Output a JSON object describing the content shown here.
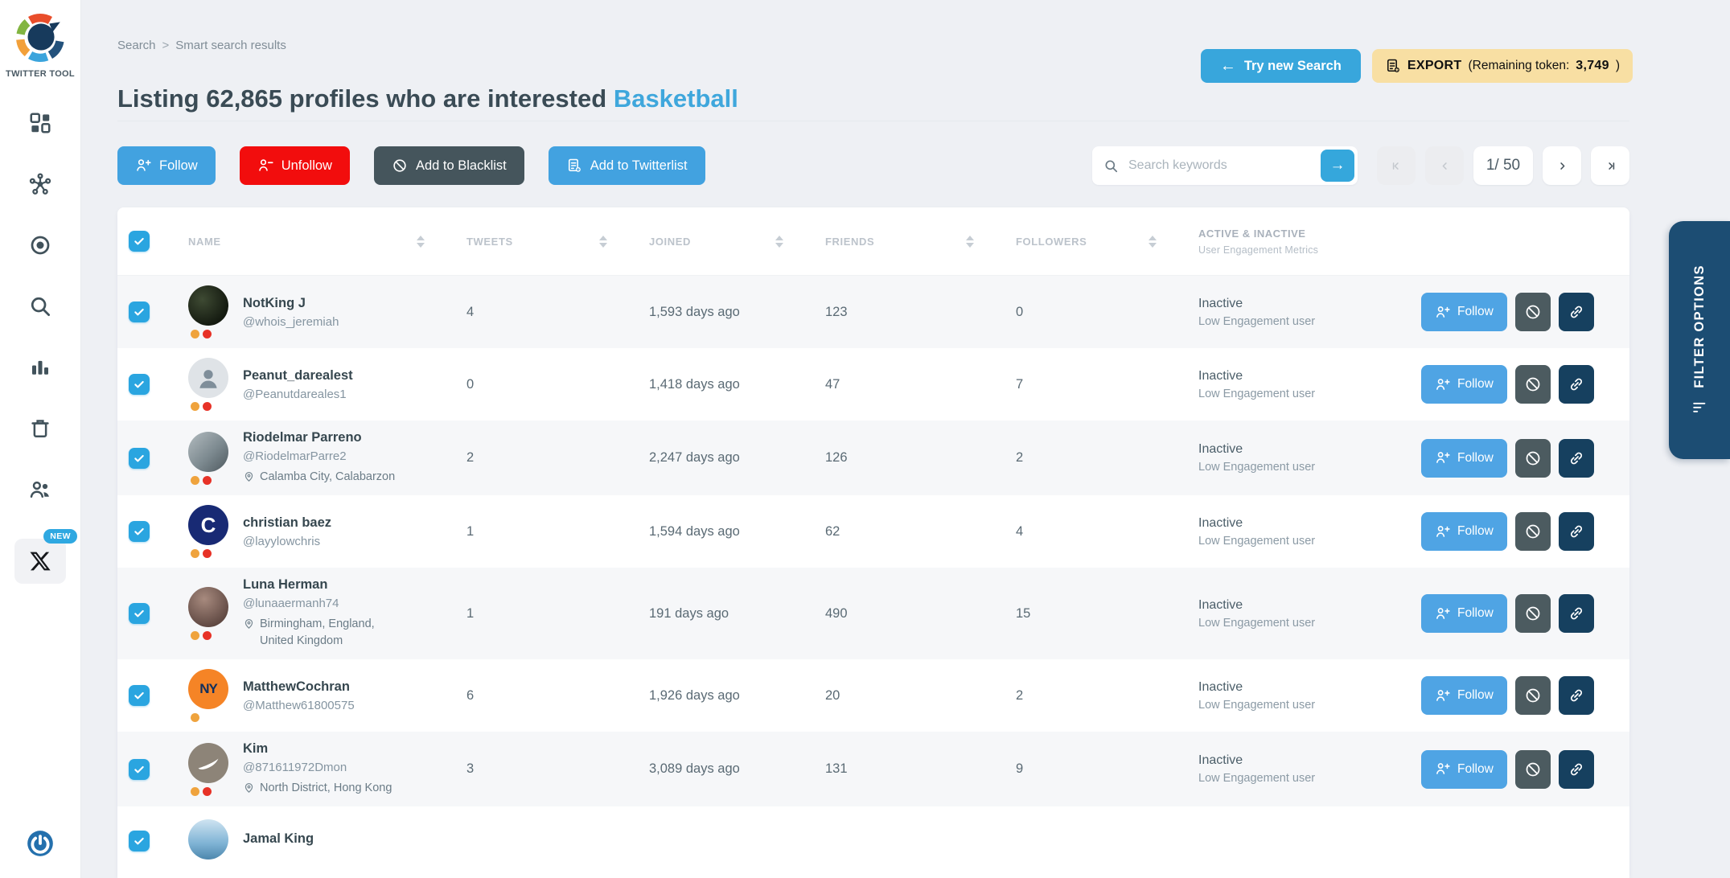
{
  "brand": {
    "name": "TWITTER TOOL"
  },
  "sidebar": {
    "new_badge": "NEW",
    "items": [
      "dashboard",
      "network",
      "target",
      "search",
      "analytics",
      "trash",
      "users",
      "x-twitter"
    ]
  },
  "breadcrumb": {
    "parent": "Search",
    "separator": ">",
    "current": "Smart search results"
  },
  "header": {
    "title_prefix": "Listing 62,865 profiles who are interested",
    "title_highlight": "Basketball"
  },
  "topbar": {
    "try_new_search": "Try new Search",
    "export": {
      "label": "EXPORT",
      "remaining_label": "(Remaining token:",
      "tokens": "3,749",
      "close": ")"
    }
  },
  "bulk_actions": {
    "follow": "Follow",
    "unfollow": "Unfollow",
    "blacklist": "Add to Blacklist",
    "twitterlist": "Add to Twitterlist"
  },
  "search": {
    "placeholder": "Search keywords"
  },
  "pagination": {
    "page_indicator": "1/ 50"
  },
  "table": {
    "columns": {
      "name": "NAME",
      "tweets": "TWEETS",
      "joined": "JOINED",
      "friends": "FRIENDS",
      "followers": "FOLLOWERS"
    },
    "engagement_column": {
      "line1": "ACTIVE & INACTIVE",
      "line2": "User Engagement Metrics"
    },
    "row_actions": {
      "follow": "Follow"
    },
    "rows": [
      {
        "name": "NotKing J",
        "handle": "@whois_jeremiah",
        "location": "",
        "tweets": "4",
        "joined": "1,593 days ago",
        "friends": "123",
        "followers": "0",
        "status": "Inactive",
        "engagement": "Low Engagement user",
        "dots": [
          "#efa33d",
          "#e73227"
        ],
        "avatar": "photo-dark",
        "checked": true
      },
      {
        "name": "Peanut_darealest",
        "handle": "@Peanutdareales1",
        "location": "",
        "tweets": "0",
        "joined": "1,418 days ago",
        "friends": "47",
        "followers": "7",
        "status": "Inactive",
        "engagement": "Low Engagement user",
        "dots": [
          "#efa33d",
          "#e73227"
        ],
        "avatar": "default",
        "checked": true
      },
      {
        "name": "Riodelmar Parreno",
        "handle": "@RiodelmarParre2",
        "location": "Calamba City, Calabarzon",
        "tweets": "2",
        "joined": "2,247 days ago",
        "friends": "126",
        "followers": "2",
        "status": "Inactive",
        "engagement": "Low Engagement user",
        "dots": [
          "#efa33d",
          "#e73227"
        ],
        "avatar": "photo-gray",
        "checked": true
      },
      {
        "name": "christian baez",
        "handle": "@layylowchris",
        "location": "",
        "tweets": "1",
        "joined": "1,594 days ago",
        "friends": "62",
        "followers": "4",
        "status": "Inactive",
        "engagement": "Low Engagement user",
        "dots": [
          "#efa33d",
          "#e73227"
        ],
        "avatar": "champion",
        "checked": true
      },
      {
        "name": "Luna Herman",
        "handle": "@lunaaermanh74",
        "location": "Birmingham, England, United Kingdom",
        "tweets": "1",
        "joined": "191 days ago",
        "friends": "490",
        "followers": "15",
        "status": "Inactive",
        "engagement": "Low Engagement user",
        "dots": [
          "#efa33d",
          "#e73227"
        ],
        "avatar": "photo-warm",
        "checked": true
      },
      {
        "name": "MatthewCochran",
        "handle": "@Matthew61800575",
        "location": "",
        "tweets": "6",
        "joined": "1,926 days ago",
        "friends": "20",
        "followers": "2",
        "status": "Inactive",
        "engagement": "Low Engagement user",
        "dots": [
          "#efa33d"
        ],
        "avatar": "knicks",
        "checked": true
      },
      {
        "name": "Kim",
        "handle": "@871611972Dmon",
        "location": "North District, Hong Kong",
        "tweets": "3",
        "joined": "3,089 days ago",
        "friends": "131",
        "followers": "9",
        "status": "Inactive",
        "engagement": "Low Engagement user",
        "dots": [
          "#efa33d",
          "#e73227"
        ],
        "avatar": "nike",
        "checked": true
      },
      {
        "name": "Jamal King",
        "handle": "",
        "location": "",
        "tweets": "",
        "joined": "",
        "friends": "",
        "followers": "",
        "status": "",
        "engagement": "",
        "dots": [],
        "avatar": "photo-blue",
        "checked": true,
        "partial": true
      }
    ]
  },
  "filter_panel": {
    "label": "FILTER OPTIONS"
  },
  "colors": {
    "accent_blue": "#3aa4dd",
    "danger_red": "#f20d0d",
    "dark_slate": "#45555c",
    "link_navy": "#16405f",
    "export_bg": "#f8dfa3",
    "filter_bg": "#1c4d73",
    "checkbox_blue": "#2aa5e0",
    "dot_orange": "#efa33d",
    "dot_red": "#e73227"
  }
}
